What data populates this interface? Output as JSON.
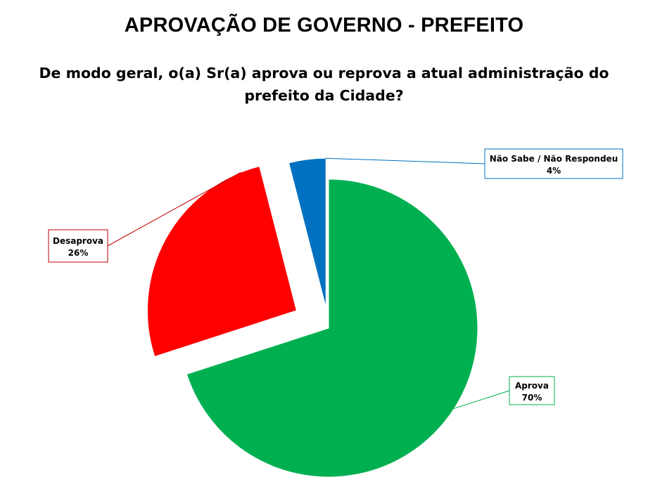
{
  "title": "APROVAÇÃO DE GOVERNO - PREFEITO",
  "subtitle": "De modo geral, o(a) Sr(a) aprova ou reprova a atual administração do prefeito da Cidade?",
  "chart_data": {
    "type": "pie",
    "title": "APROVAÇÃO DE GOVERNO - PREFEITO",
    "subtitle": "De modo geral, o(a) Sr(a) aprova ou reprova a atual administração do prefeito da Cidade?",
    "exploded": true,
    "slices": [
      {
        "label": "Aprova",
        "value": 70,
        "value_label": "70%",
        "color": "#00B050"
      },
      {
        "label": "Desaprova",
        "value": 26,
        "value_label": "26%",
        "color": "#FF0000"
      },
      {
        "label": "Não Sabe / Não Respondeu",
        "value": 4,
        "value_label": "4%",
        "color": "#0070C0"
      }
    ]
  }
}
